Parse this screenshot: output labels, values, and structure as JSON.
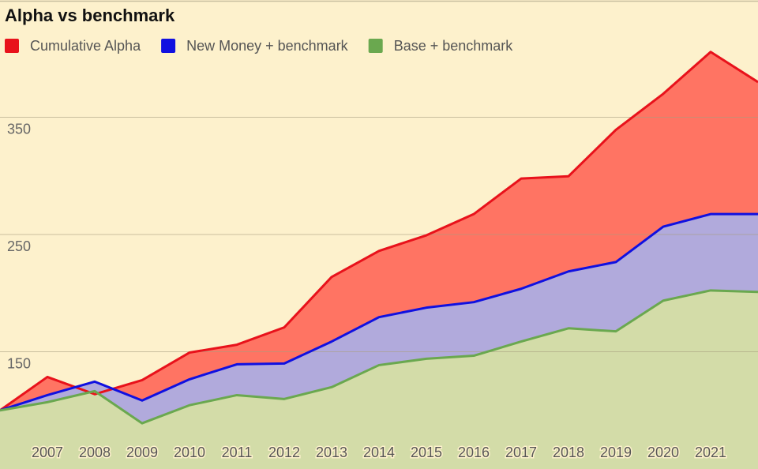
{
  "chart_data": {
    "type": "area",
    "title": "Alpha vs benchmark",
    "categories": [
      null,
      "2007",
      "2008",
      "2009",
      "2010",
      "2011",
      "2012",
      "2013",
      "2014",
      "2015",
      "2016",
      "2017",
      "2018",
      "2019",
      "2020",
      "2021",
      null
    ],
    "series": [
      {
        "name": "Cumulative Alpha",
        "color": "#e8121b",
        "fill": "#ff7463",
        "values": [
          100,
          128.5,
          113.8,
          125.8,
          149.3,
          156,
          170.8,
          213.8,
          236,
          249.3,
          267.4,
          297.7,
          299.7,
          339.3,
          370,
          405.7,
          380
        ]
      },
      {
        "name": "New Money + benchmark",
        "color": "#1010e0",
        "fill": "#b1aadc",
        "values": [
          100,
          113,
          124.5,
          108.4,
          126.5,
          139.3,
          140,
          158.7,
          179.5,
          187.6,
          192.3,
          203.7,
          218.5,
          226.5,
          256.7,
          267.4,
          267.4
        ]
      },
      {
        "name": "Base + benchmark",
        "color": "#6aa84f",
        "fill": "#d3dca8",
        "values": [
          100,
          107,
          116.4,
          89,
          104.4,
          113,
          109.7,
          119.8,
          138.6,
          144,
          146.6,
          158.7,
          170,
          167.4,
          193.6,
          202.3,
          201
        ]
      }
    ],
    "ylim": [
      50,
      450
    ],
    "yticks": [
      150,
      250,
      350
    ],
    "grid": true,
    "legend": "top-left"
  }
}
